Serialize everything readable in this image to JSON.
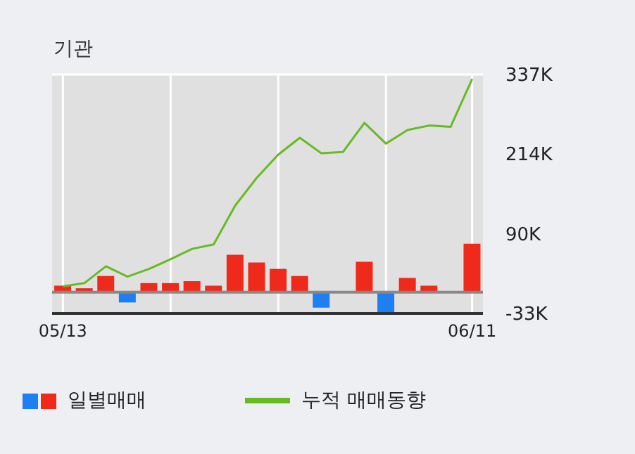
{
  "chart_data": {
    "type": "bar",
    "title": "기관",
    "categories": [
      "05/13",
      null,
      null,
      null,
      null,
      null,
      null,
      null,
      null,
      null,
      null,
      null,
      null,
      null,
      null,
      null,
      null,
      null,
      null,
      "06/11"
    ],
    "series": [
      {
        "name": "일별매매",
        "colors": [
          "#f02a1a",
          "#f02a1a",
          "#f02a1a",
          "#1e7ff0",
          "#f02a1a",
          "#f02a1a",
          "#f02a1a",
          "#f02a1a",
          "#f02a1a",
          "#f02a1a",
          "#f02a1a",
          "#f02a1a",
          "#1e7ff0",
          "#f02a1a",
          "#f02a1a",
          "#1e7ff0",
          "#f02a1a",
          "#f02a1a",
          "#f02a1a",
          "#f02a1a"
        ],
        "values": [
          10000,
          6000,
          25000,
          -16000,
          14000,
          14000,
          17000,
          10000,
          58000,
          46000,
          36000,
          25000,
          -24000,
          null,
          47000,
          -33000,
          22000,
          10000,
          0,
          75000
        ]
      },
      {
        "name": "누적 매매동향",
        "type": "line",
        "color": "#66bb22",
        "values": [
          9000,
          14000,
          40000,
          24000,
          36000,
          51000,
          67000,
          74000,
          134000,
          177000,
          213000,
          239000,
          215000,
          217000,
          262000,
          230000,
          251000,
          258000,
          256000,
          330000
        ]
      }
    ],
    "ylim": [
      -33000,
      337000
    ],
    "yticks": [
      {
        "value": -33000,
        "label": "-33K"
      },
      {
        "value": 90000,
        "label": "90K"
      },
      {
        "value": 214000,
        "label": "214K"
      },
      {
        "value": 337000,
        "label": "337K"
      }
    ],
    "ref_lines": [
      {
        "axis": "y",
        "value": 0,
        "color": "#888888"
      }
    ],
    "grid": true,
    "legend": "bottom",
    "marker": "none",
    "line_style": "solid"
  }
}
